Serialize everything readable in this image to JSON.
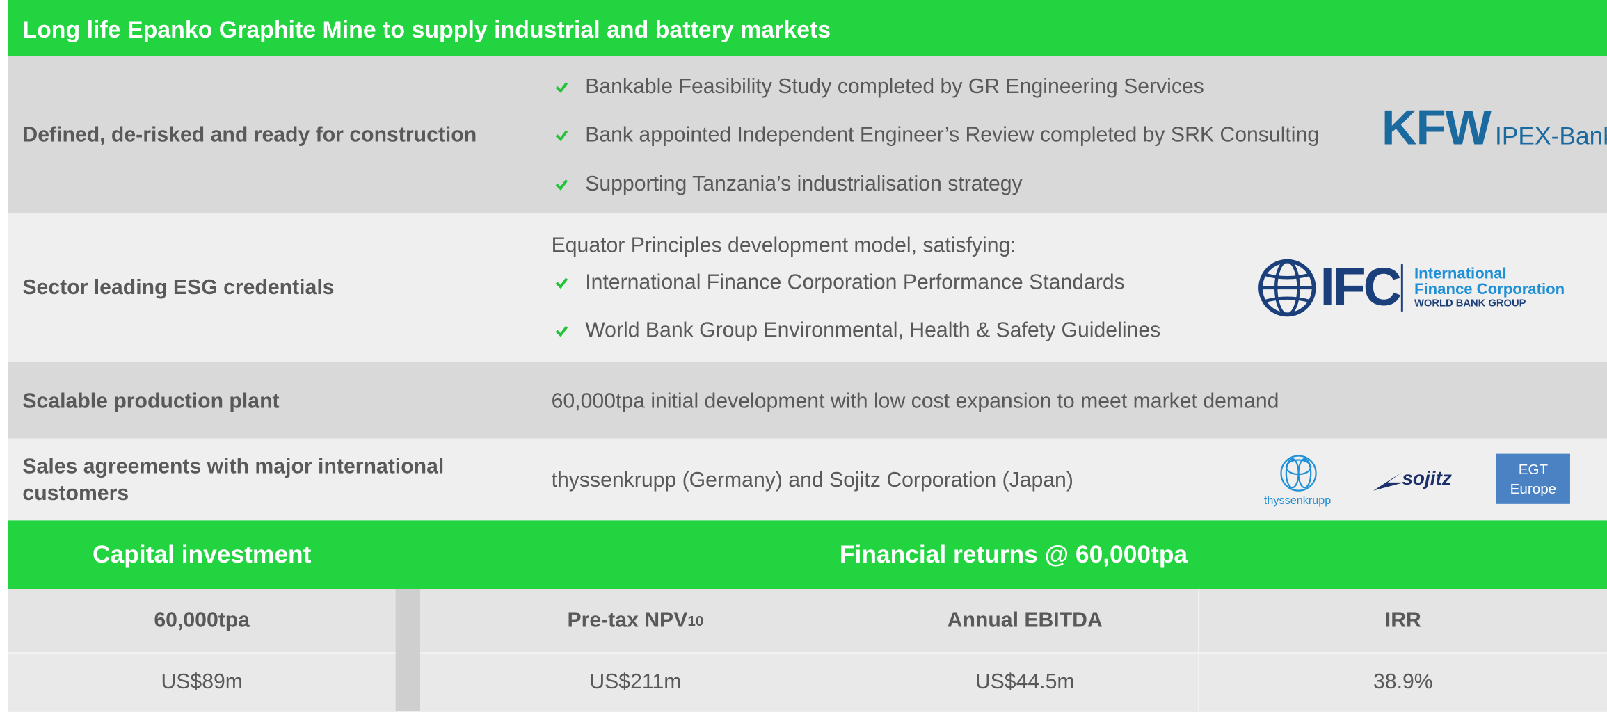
{
  "title": "Long life Epanko Graphite Mine to supply industrial and battery markets",
  "rows": [
    {
      "label": "Defined, de-risked and ready for construction",
      "bullets": [
        "Bankable Feasibility Study completed by GR Engineering Services",
        "Bank appointed Independent Engineer’s Review completed by SRK Consulting",
        "Supporting Tanzania’s industrialisation strategy"
      ],
      "logo": {
        "name": "KFW",
        "sub": "IPEX-Bank"
      }
    },
    {
      "label": "Sector leading ESG credentials",
      "intro": "Equator Principles development model, satisfying:",
      "bullets": [
        "International Finance Corporation Performance Standards",
        "World Bank Group Environmental, Health & Safety Guidelines"
      ],
      "logo": {
        "name": "IFC",
        "line1": "International",
        "line2": "Finance Corporation",
        "line3": "WORLD BANK GROUP"
      }
    },
    {
      "label": "Scalable production plant",
      "text": "60,000tpa initial development with low cost expansion to meet market demand"
    },
    {
      "label": "Sales agreements with major international customers",
      "text": "thyssenkrupp (Germany) and Sojitz Corporation (Japan)",
      "logos": {
        "thyssenkrupp": "thyssenkrupp",
        "sojitz": "sojitz",
        "egt": [
          "EGT",
          "Europe"
        ]
      }
    }
  ],
  "financials": {
    "capital_heading": "Capital investment",
    "returns_heading": "Financial returns @ 60,000tpa",
    "headers": [
      "60,000tpa",
      {
        "text": "Pre-tax NPV",
        "sub": "10"
      },
      "Annual EBITDA",
      "IRR"
    ],
    "values": [
      "US$89m",
      "US$211m",
      "US$44.5m",
      "38.9%"
    ]
  }
}
